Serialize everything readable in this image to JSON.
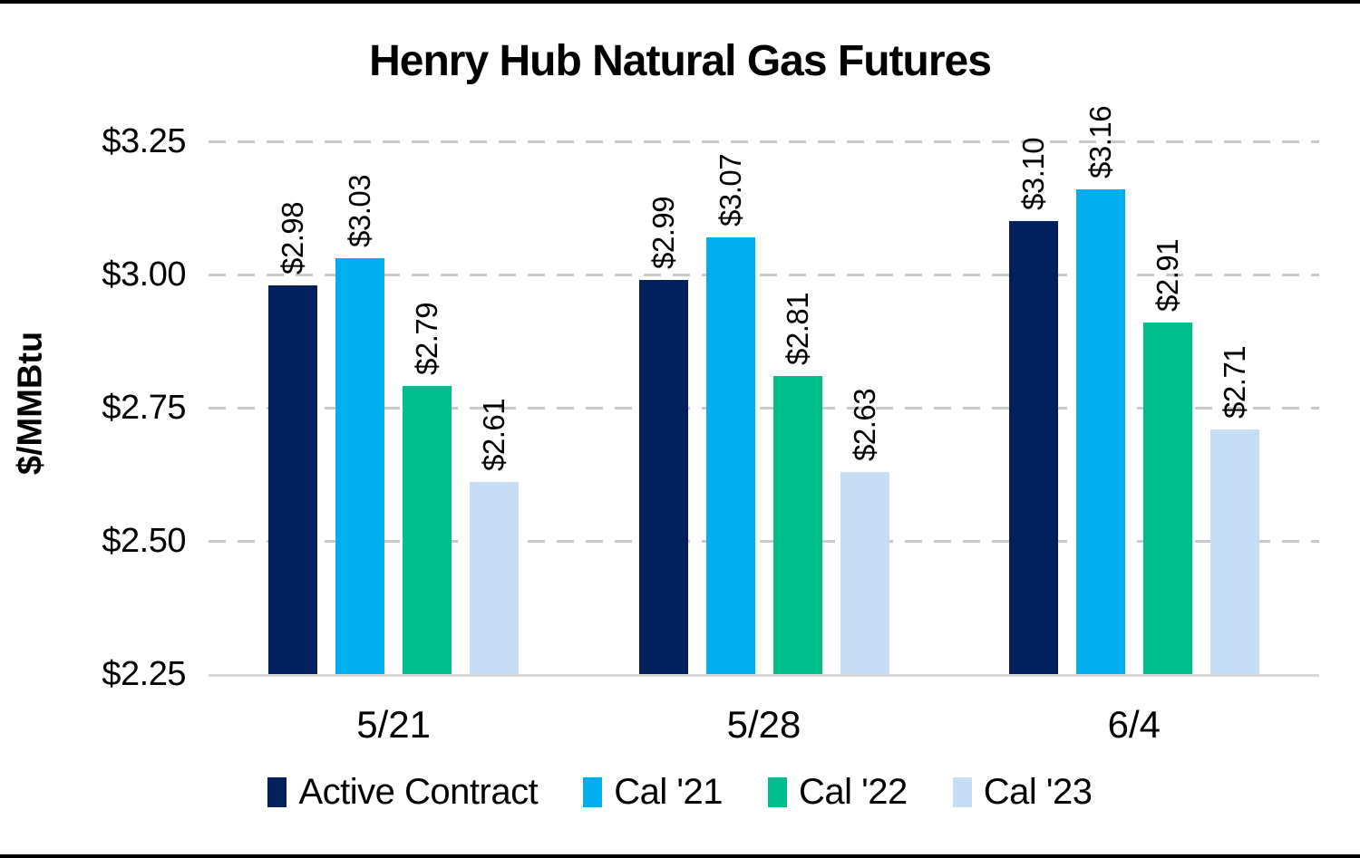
{
  "chart_data": {
    "type": "bar",
    "title": "Henry Hub Natural Gas Futures",
    "xlabel": "",
    "ylabel": "$/MMBtu",
    "categories": [
      "5/21",
      "5/28",
      "6/4"
    ],
    "series": [
      {
        "name": "Active Contract",
        "color": "#03205E",
        "values": [
          2.98,
          2.99,
          3.1
        ],
        "labels": [
          "$2.98",
          "$2.99",
          "$3.10"
        ]
      },
      {
        "name": "Cal '21",
        "color": "#00AEEF",
        "values": [
          3.03,
          3.07,
          3.16
        ],
        "labels": [
          "$3.03",
          "$3.07",
          "$3.16"
        ]
      },
      {
        "name": "Cal '22",
        "color": "#00BF8D",
        "values": [
          2.79,
          2.81,
          2.91
        ],
        "labels": [
          "$2.79",
          "$2.81",
          "$2.91"
        ]
      },
      {
        "name": "Cal '23",
        "color": "#C5DDF5",
        "values": [
          2.61,
          2.63,
          2.71
        ],
        "labels": [
          "$2.61",
          "$2.63",
          "$2.71"
        ]
      }
    ],
    "ylim": [
      2.25,
      3.25
    ],
    "ytick_step": 0.25,
    "ytick_labels": [
      "$3.25",
      "$3.00",
      "$2.75",
      "$2.50",
      "$2.25"
    ],
    "grid": "horizontal dashed gridlines, solid baseline at $2.25",
    "legend_position": "bottom center",
    "value_labels": "above each bar, rotated 90 degrees, reading bottom-to-top"
  },
  "colors": {
    "background": "#FFFFFF",
    "frame_border": "#000000",
    "gridline": "#C9C9C9",
    "axis_line": "#D9D9D9",
    "text": "#000000"
  }
}
